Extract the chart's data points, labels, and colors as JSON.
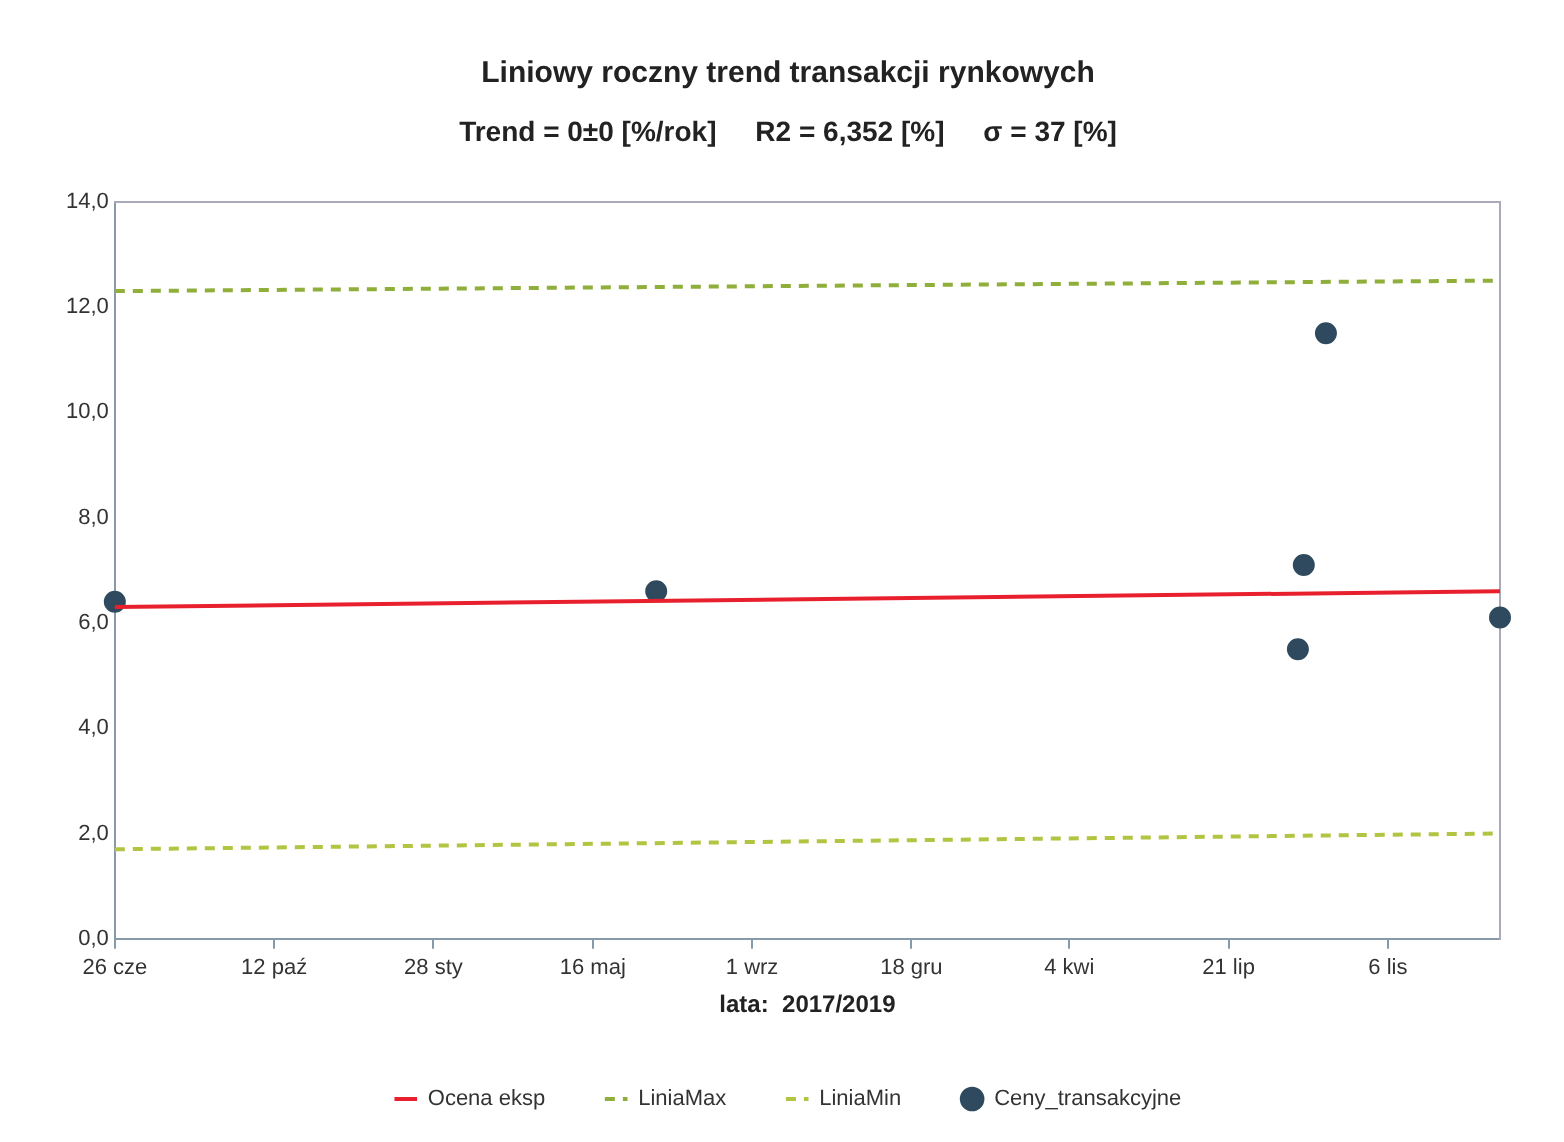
{
  "chart_data": {
    "type": "scatter",
    "title": "Liniowy roczny trend transakcji rynkowych",
    "subtitle": "Trend = 0±0 [%/rok]     R2 = 6,352 [%]     σ = 37 [%]",
    "xlabel": "lata:  2017/2019",
    "xlim": [
      "2017-06-26",
      "2020-01-21"
    ],
    "xticks": [
      {
        "value": "2017-06-26",
        "label": "26 cze"
      },
      {
        "value": "2017-10-12",
        "label": "12 paź"
      },
      {
        "value": "2018-01-28",
        "label": "28 sty"
      },
      {
        "value": "2018-05-16",
        "label": "16 maj"
      },
      {
        "value": "2018-09-01",
        "label": "1 wrz"
      },
      {
        "value": "2018-12-18",
        "label": "18 gru"
      },
      {
        "value": "2019-04-04",
        "label": "4 kwi"
      },
      {
        "value": "2019-07-21",
        "label": "21 lip"
      },
      {
        "value": "2019-11-06",
        "label": "6 lis"
      }
    ],
    "ylim": [
      0,
      14
    ],
    "yticks": [
      {
        "value": 0,
        "label": "0,0"
      },
      {
        "value": 2,
        "label": "2,0"
      },
      {
        "value": 4,
        "label": "4,0"
      },
      {
        "value": 6,
        "label": "6,0"
      },
      {
        "value": 8,
        "label": "8,0"
      },
      {
        "value": 10,
        "label": "10,0"
      },
      {
        "value": 12,
        "label": "12,0"
      },
      {
        "value": 14,
        "label": "14,0"
      }
    ],
    "grid": false,
    "legend": "bottom",
    "series": [
      {
        "name": "Ocena eksp",
        "type": "line",
        "color": "#e8202e",
        "line_style": "solid",
        "marker": "none",
        "x": [
          "2017-06-26",
          "2020-01-21"
        ],
        "values": [
          6.3,
          6.6
        ]
      },
      {
        "name": "LiniaMax",
        "type": "line",
        "color": "#8fae3a",
        "line_style": "dashed",
        "marker": "none",
        "x": [
          "2017-06-26",
          "2020-01-21"
        ],
        "values": [
          12.3,
          12.5
        ]
      },
      {
        "name": "LiniaMin",
        "type": "line",
        "color": "#b3c443",
        "line_style": "dashed",
        "marker": "none",
        "x": [
          "2017-06-26",
          "2020-01-21"
        ],
        "values": [
          1.7,
          2.0
        ]
      },
      {
        "name": "Ceny_transakcyjne",
        "type": "scatter",
        "color": "#2f4a5e",
        "marker": "circle",
        "x": [
          "2017-06-26",
          "2018-06-28",
          "2019-09-06",
          "2019-09-10",
          "2019-09-25",
          "2020-01-21"
        ],
        "values": [
          6.4,
          6.6,
          5.5,
          7.1,
          11.5,
          6.1
        ]
      }
    ]
  }
}
